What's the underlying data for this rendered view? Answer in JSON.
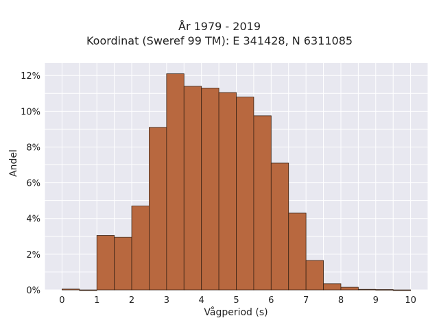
{
  "chart_data": {
    "type": "bar",
    "title": "År 1979 - 2019",
    "subtitle": "Koordinat (Sweref 99 TM): E 341428, N 6311085",
    "xlabel": "Vågperiod (s)",
    "ylabel": "Andel",
    "bin_width": 0.5,
    "bins_start": [
      0,
      0.5,
      1,
      1.5,
      2,
      2.5,
      3,
      3.5,
      4,
      4.5,
      5,
      5.5,
      6,
      6.5,
      7,
      7.5,
      8,
      8.5,
      9,
      9.5
    ],
    "values": [
      0.05,
      0,
      3.05,
      2.95,
      4.7,
      9.1,
      12.1,
      11.4,
      11.3,
      11.05,
      10.8,
      9.75,
      7.1,
      4.3,
      1.65,
      0.35,
      0.15,
      0.03,
      0.02,
      0
    ],
    "x_ticks": [
      "0",
      "1",
      "2",
      "3",
      "4",
      "5",
      "6",
      "7",
      "8",
      "9",
      "10"
    ],
    "y_ticks": [
      "0%",
      "2%",
      "4%",
      "6%",
      "8%",
      "10%",
      "12%"
    ],
    "xlim": [
      -0.5,
      10.5
    ],
    "ylim": [
      0,
      12.7
    ],
    "grid": true,
    "colors": {
      "bar_fill": "#b8683f",
      "bar_edge": "#3a2416",
      "plot_bg": "#e8e8f0",
      "grid": "#ffffff"
    }
  }
}
